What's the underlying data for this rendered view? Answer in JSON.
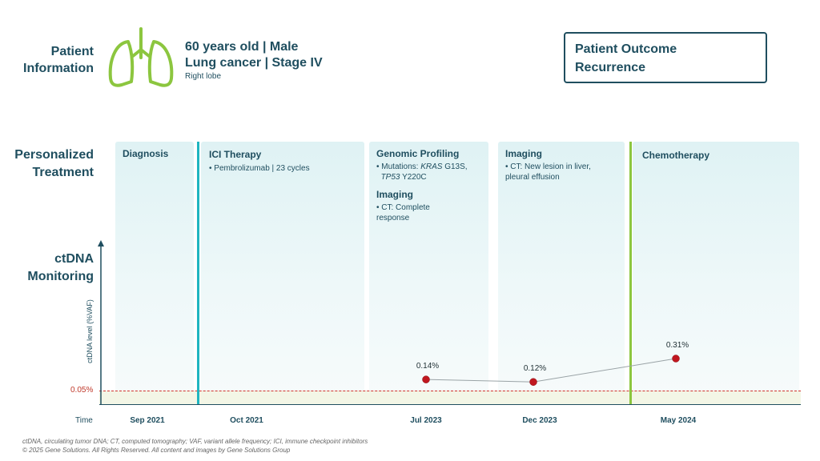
{
  "patient": {
    "label": "Patient Information",
    "line1": "60 years old | Male",
    "line2": "Lung cancer | Stage IV",
    "sub": "Right lobe",
    "icon": "lungs-icon"
  },
  "outcome": {
    "line1": "Patient Outcome",
    "line2": "Recurrence"
  },
  "rows": {
    "treatment": "Personalized Treatment",
    "ctdna": "ctDNA Monitoring"
  },
  "phases": [
    {
      "title": "Diagnosis"
    },
    {
      "title": "ICI Therapy",
      "bullet": "Pembrolizumab | 23 cycles"
    },
    {
      "title": "Genomic Profiling",
      "bullet_pre": "Mutations: ",
      "gene1": "KRAS",
      "mut1": " G13S,",
      "gene2": "TP53",
      "mut2": " Y220C",
      "title2": "Imaging",
      "bullet2": "CT: Complete response"
    },
    {
      "title": "Imaging",
      "bullet": "CT: New lesion in liver, pleural effusion"
    },
    {
      "title": "Chemotherapy"
    }
  ],
  "colors": {
    "ici": "#1fb5c0",
    "chemo": "#8cc63f",
    "point": "#c0171f",
    "threshold": "#d0312d"
  },
  "chart_data": {
    "type": "line",
    "title": "ctDNA Monitoring",
    "ylabel": "ctDNA level (%VAF)",
    "xlabel": "Time",
    "threshold": {
      "value": 0.05,
      "label": "0.05%"
    },
    "x_ticks": [
      "Sep 2021",
      "Oct 2021",
      "Jul 2023",
      "Dec 2023",
      "May 2024"
    ],
    "series": [
      {
        "name": "ctDNA",
        "points": [
          {
            "x": "Jul 2023",
            "value": 0.14,
            "label": "0.14%"
          },
          {
            "x": "Dec 2023",
            "value": 0.12,
            "label": "0.12%"
          },
          {
            "x": "May 2024",
            "value": 0.31,
            "label": "0.31%"
          }
        ]
      }
    ],
    "ylim": [
      0,
      0.31
    ]
  },
  "footnote": {
    "line1": "ctDNA, circulating tumor DNA; CT, computed tomography; VAF, variant allele frequency; ICI, immune checkpoint inhibitors",
    "line2": "© 2025 Gene Solutions. All Rights Reserved. All content and images by Gene Solutions Group"
  }
}
